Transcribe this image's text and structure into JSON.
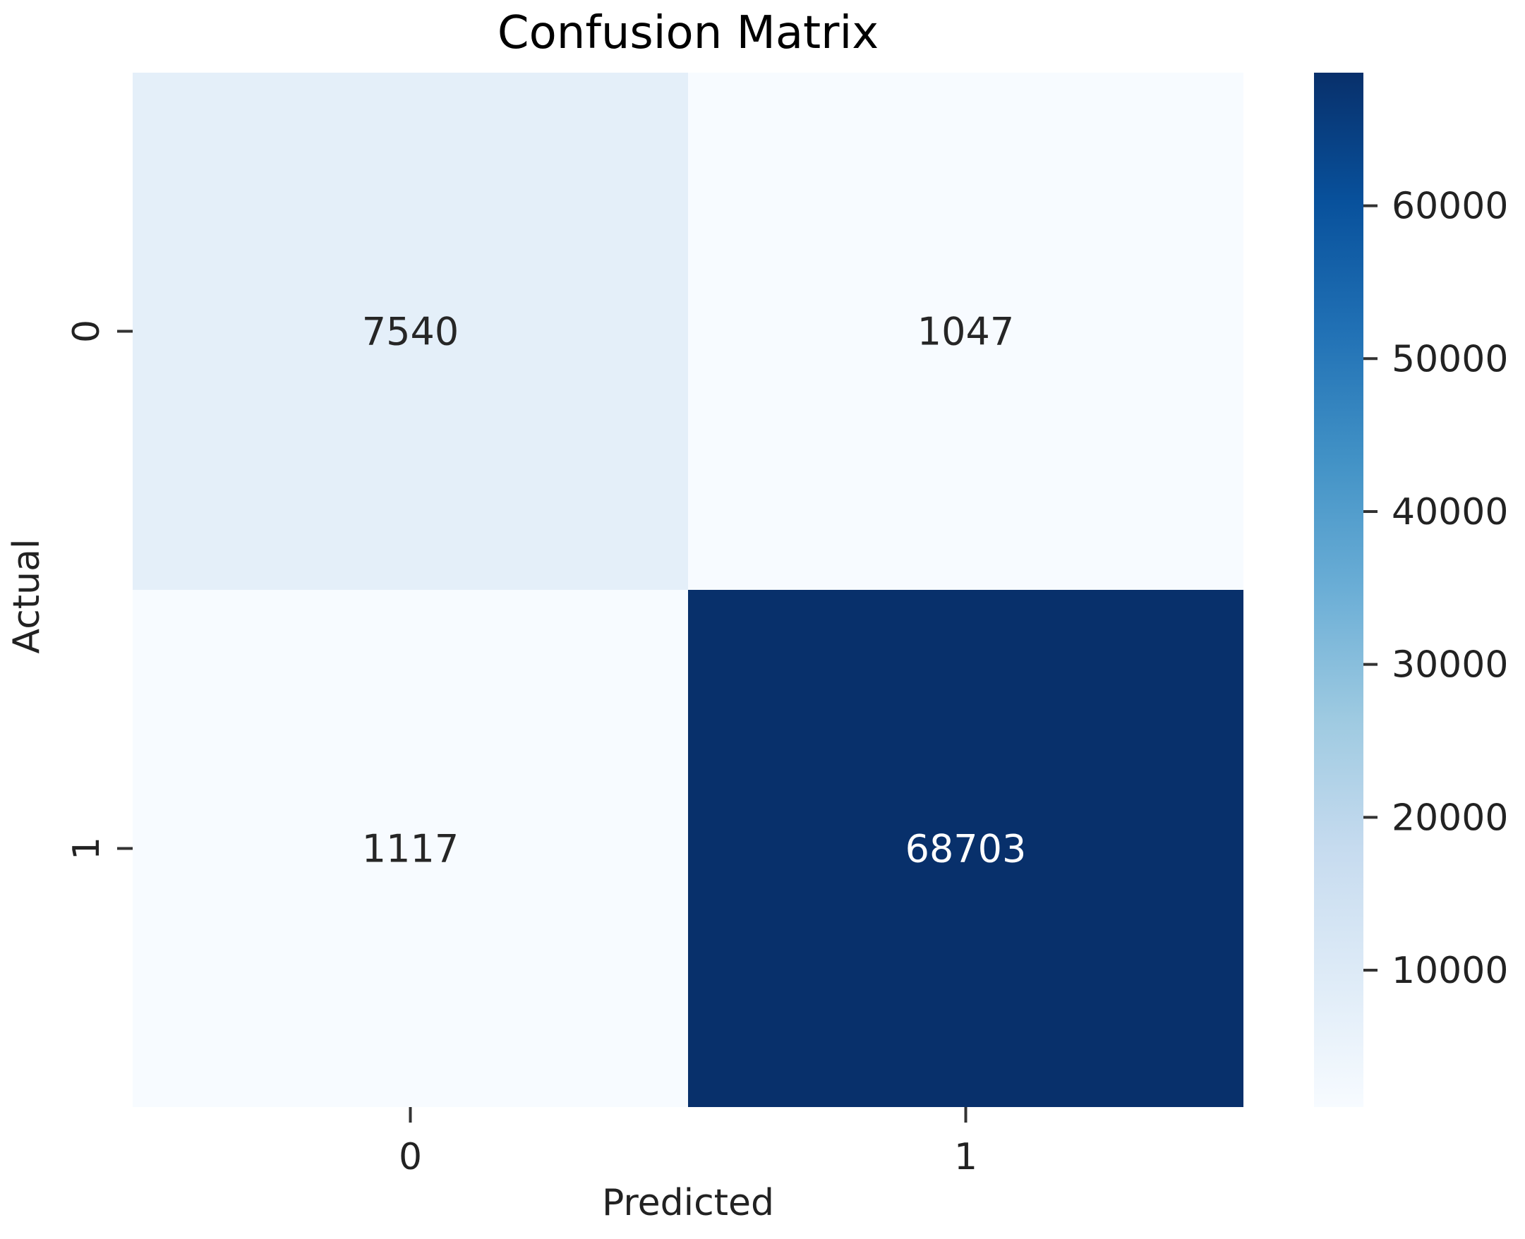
{
  "chart_data": {
    "type": "heatmap",
    "title": "Confusion Matrix",
    "xlabel": "Predicted",
    "ylabel": "Actual",
    "x_categories": [
      "0",
      "1"
    ],
    "y_categories": [
      "0",
      "1"
    ],
    "values": [
      [
        7540,
        1047
      ],
      [
        1117,
        68703
      ]
    ],
    "colormap": "Blues",
    "color_low": "#f7fbff",
    "color_high": "#08306b",
    "colorbar": {
      "range": [
        1047,
        68703
      ],
      "ticks": [
        10000,
        20000,
        30000,
        40000,
        50000,
        60000
      ],
      "tick_labels": [
        "10000",
        "20000",
        "30000",
        "40000",
        "50000",
        "60000"
      ]
    },
    "annotations": true,
    "grid": false
  }
}
